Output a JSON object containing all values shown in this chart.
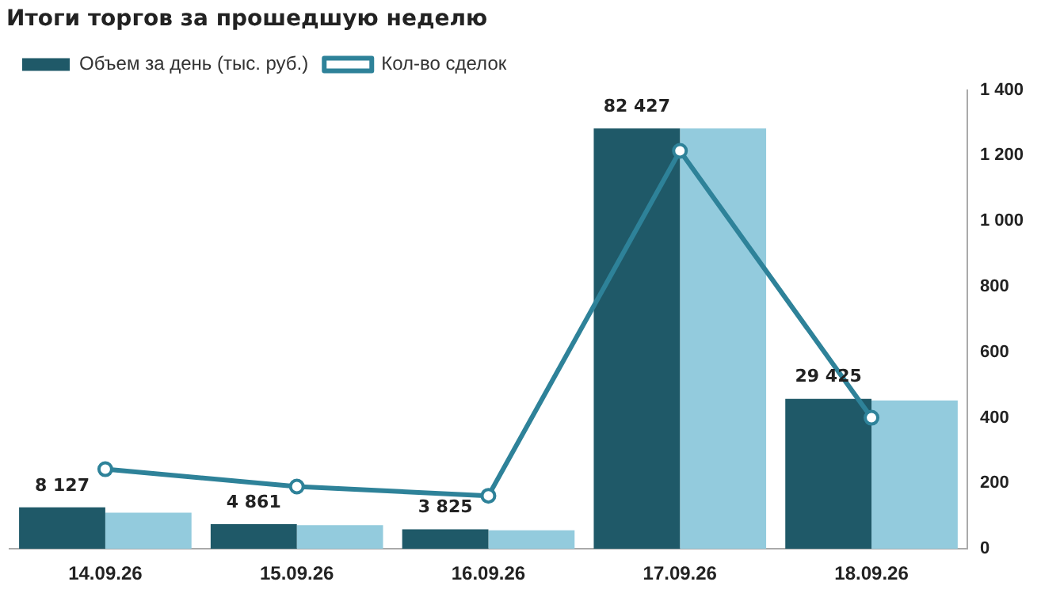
{
  "chart_data": {
    "type": "bar",
    "title": "Итоги торгов за прошедшую неделю",
    "categories": [
      "14.09.26",
      "15.09.26",
      "16.09.26",
      "17.09.26",
      "18.09.26"
    ],
    "series": [
      {
        "name": "Объем за день (тыс. руб.)",
        "color": "#1f5968",
        "axis": "y2",
        "values": [
          8127,
          4861,
          3825,
          82427,
          29425
        ],
        "value_labels": [
          "8 127",
          "4 861",
          "3 825",
          "82 427",
          "29 425"
        ]
      },
      {
        "color": "#93cbdd",
        "axis": "y2",
        "values": [
          7100,
          4650,
          3650,
          82427,
          29100
        ]
      },
      {
        "name": "Кол-во сделок",
        "type": "line",
        "color": "#2e8299",
        "marker": "circle",
        "values": [
          243,
          190,
          162,
          1214,
          400
        ]
      }
    ],
    "ylim": [
      0,
      1400
    ],
    "yticks": [
      0,
      200,
      400,
      600,
      800,
      {
        "value": 1000,
        "label": "1 000"
      },
      {
        "value": 1200,
        "label": "1 200"
      },
      {
        "value": 1400,
        "label": "1 400"
      }
    ],
    "y2lim": [
      0,
      90000
    ],
    "legend": "top left",
    "grid": false
  }
}
